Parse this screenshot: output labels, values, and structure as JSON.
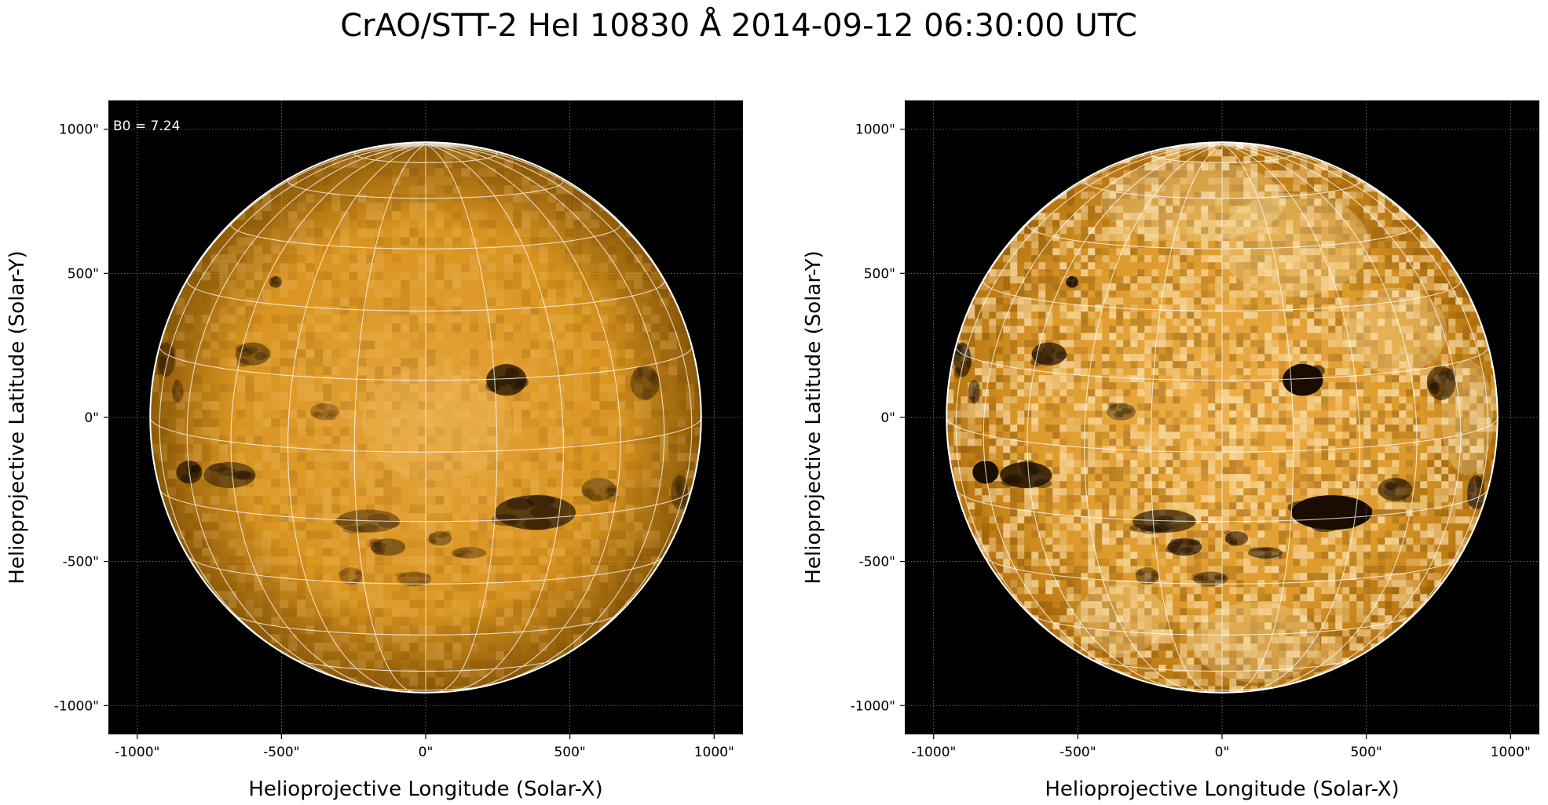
{
  "figure": {
    "title": "CrAO/STT-2 HeI 10830 Å 2014-09-12 06:30:00 UTC"
  },
  "panels": [
    {
      "id": "left",
      "annotation": "B0 = 7.24",
      "xlabel": "Helioprojective Longitude (Solar-X)",
      "ylabel": "Helioprojective Latitude (Solar-Y)",
      "contrast": "normal"
    },
    {
      "id": "right",
      "annotation": "",
      "xlabel": "Helioprojective Longitude (Solar-X)",
      "ylabel": "Helioprojective Latitude (Solar-Y)",
      "contrast": "enhanced"
    }
  ],
  "axes": {
    "x_ticks": [
      "-1000\"",
      "-500\"",
      "0\"",
      "500\"",
      "1000\""
    ],
    "y_ticks": [
      "1000\"",
      "500\"",
      "0\"",
      "-500\"",
      "-1000\""
    ],
    "tick_values": [
      -1000,
      -500,
      0,
      500,
      1000
    ],
    "xlim": [
      -1100,
      1100
    ],
    "ylim": [
      -1100,
      1100
    ],
    "grid": true
  },
  "sun": {
    "radius_arcsec": 955,
    "b0_deg": 7.24,
    "grid_spacing_deg": 15,
    "colormap": "orange (helium 10830)"
  },
  "colors": {
    "sky_background": "#000000",
    "disk_base": "#c8860f",
    "disk_bright": "#f5c978",
    "dark_feature": "#1a0d00",
    "grid": "#ffffff"
  }
}
